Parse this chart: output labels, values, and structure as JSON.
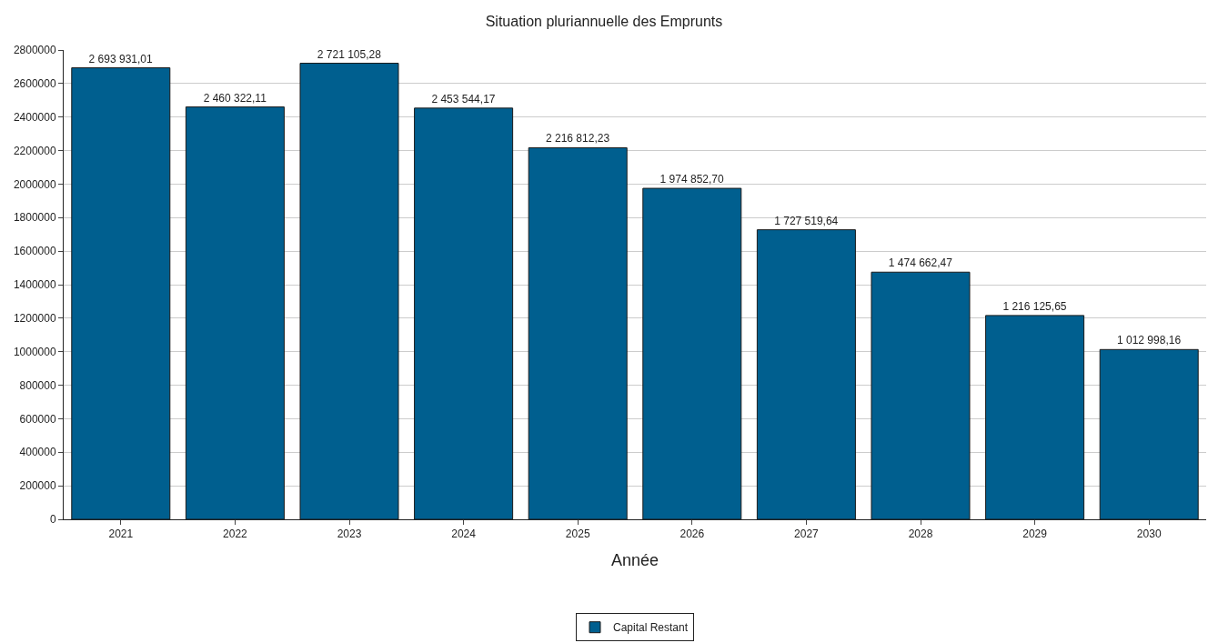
{
  "chart_data": {
    "type": "bar",
    "title": "Situation pluriannuelle des Emprunts",
    "xlabel": "Année",
    "categories": [
      "2021",
      "2022",
      "2023",
      "2024",
      "2025",
      "2026",
      "2027",
      "2028",
      "2029",
      "2030"
    ],
    "series": [
      {
        "name": "Capital Restant",
        "color": "#005f8f",
        "values": [
          2693931.01,
          2460322.11,
          2721105.28,
          2453544.17,
          2216812.23,
          1974852.7,
          1727519.64,
          1474662.47,
          1216125.65,
          1012998.16
        ],
        "value_labels": [
          "2 693 931,01",
          "2 460 322,11",
          "2 721 105,28",
          "2 453 544,17",
          "2 216 812,23",
          "1 974 852,70",
          "1 727 519,64",
          "1 474 662,47",
          "1 216 125,65",
          "1 012 998,16"
        ]
      }
    ],
    "ylim": [
      0,
      2800000
    ],
    "yticks": [
      0,
      200000,
      400000,
      600000,
      800000,
      1000000,
      1200000,
      1400000,
      1600000,
      1800000,
      2000000,
      2200000,
      2400000,
      2600000,
      2800000
    ],
    "grid": "y",
    "legend": "bottom"
  }
}
